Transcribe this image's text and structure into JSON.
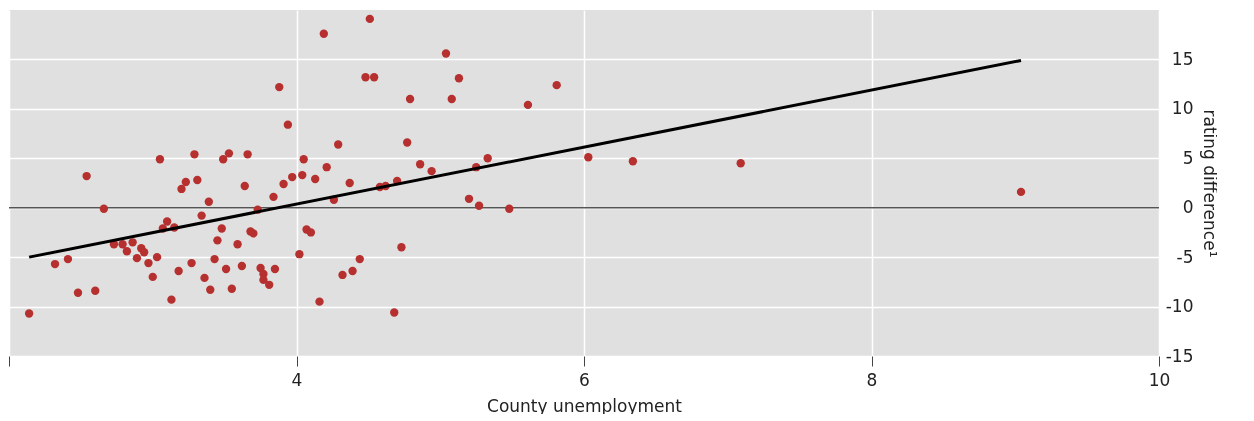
{
  "chart_data": {
    "type": "scatter",
    "xlabel": "County unemployment",
    "ylabel": "rating difference¹",
    "xlim": [
      2,
      10
    ],
    "xticks": [
      {
        "value": 2,
        "label": null
      },
      4,
      6,
      8,
      10
    ],
    "ylim": [
      -15,
      20
    ],
    "yticks": [
      -15,
      -10,
      -5,
      0,
      5,
      10,
      15
    ],
    "grid": true,
    "ref_lines": [
      {
        "axis": "y",
        "value": 0,
        "color": "#555555"
      }
    ],
    "series": [
      {
        "color": "#b5302e",
        "marker": "circle",
        "x": [
          2.14,
          2.32,
          2.41,
          2.48,
          2.54,
          2.6,
          2.66,
          2.73,
          2.79,
          2.82,
          2.86,
          2.89,
          2.92,
          2.94,
          2.97,
          3.0,
          3.03,
          3.05,
          3.07,
          3.1,
          3.13,
          3.15,
          3.18,
          3.2,
          3.23,
          3.27,
          3.29,
          3.31,
          3.34,
          3.36,
          3.39,
          3.4,
          3.43,
          3.45,
          3.48,
          3.49,
          3.51,
          3.53,
          3.55,
          3.59,
          3.62,
          3.64,
          3.66,
          3.68,
          3.7,
          3.73,
          3.75,
          3.77,
          3.77,
          3.81,
          3.84,
          3.85,
          3.88,
          3.91,
          3.94,
          3.97,
          4.02,
          4.04,
          4.05,
          4.07,
          4.1,
          4.13,
          4.16,
          4.19,
          4.21,
          4.26,
          4.29,
          4.32,
          4.37,
          4.39,
          4.44,
          4.48,
          4.51,
          4.54,
          4.58,
          4.62,
          4.68,
          4.7,
          4.73,
          4.77,
          4.79,
          4.86,
          4.94,
          5.04,
          5.08,
          5.13,
          5.2,
          5.25,
          5.27,
          5.33,
          5.48,
          5.61,
          5.81,
          6.03,
          6.34,
          7.09,
          9.04
        ],
        "values": [
          -10.7,
          -5.7,
          -5.2,
          -8.6,
          3.2,
          -8.4,
          -0.1,
          -3.7,
          -3.7,
          -4.4,
          -3.5,
          -5.1,
          -4.1,
          -4.5,
          -5.6,
          -7.0,
          -5.0,
          4.9,
          -2.1,
          -1.4,
          -9.3,
          -2.0,
          -6.4,
          1.9,
          2.6,
          -5.6,
          5.4,
          2.8,
          -0.8,
          -7.1,
          0.6,
          -8.3,
          -5.2,
          -3.3,
          -2.1,
          4.9,
          -6.2,
          5.5,
          -8.2,
          -3.7,
          -5.9,
          2.2,
          5.4,
          -2.4,
          -2.6,
          -0.2,
          -6.1,
          -6.7,
          -7.3,
          -7.8,
          1.1,
          -6.2,
          12.2,
          2.4,
          8.4,
          3.1,
          -4.7,
          3.3,
          4.9,
          -2.2,
          -2.5,
          2.9,
          -9.5,
          17.6,
          4.1,
          0.8,
          6.4,
          -6.8,
          2.5,
          -6.4,
          -5.2,
          13.2,
          19.1,
          13.2,
          2.1,
          2.2,
          -10.6,
          2.7,
          -4.0,
          6.6,
          11.0,
          4.4,
          3.7,
          15.6,
          11.0,
          13.1,
          0.9,
          4.1,
          0.2,
          5.0,
          -0.1,
          10.4,
          12.4,
          5.1,
          4.7,
          4.5,
          1.6
        ]
      },
      {
        "type": "line",
        "color": "#000000",
        "x": [
          2.14,
          9.04
        ],
        "values": [
          -5.0,
          14.9
        ]
      }
    ]
  }
}
